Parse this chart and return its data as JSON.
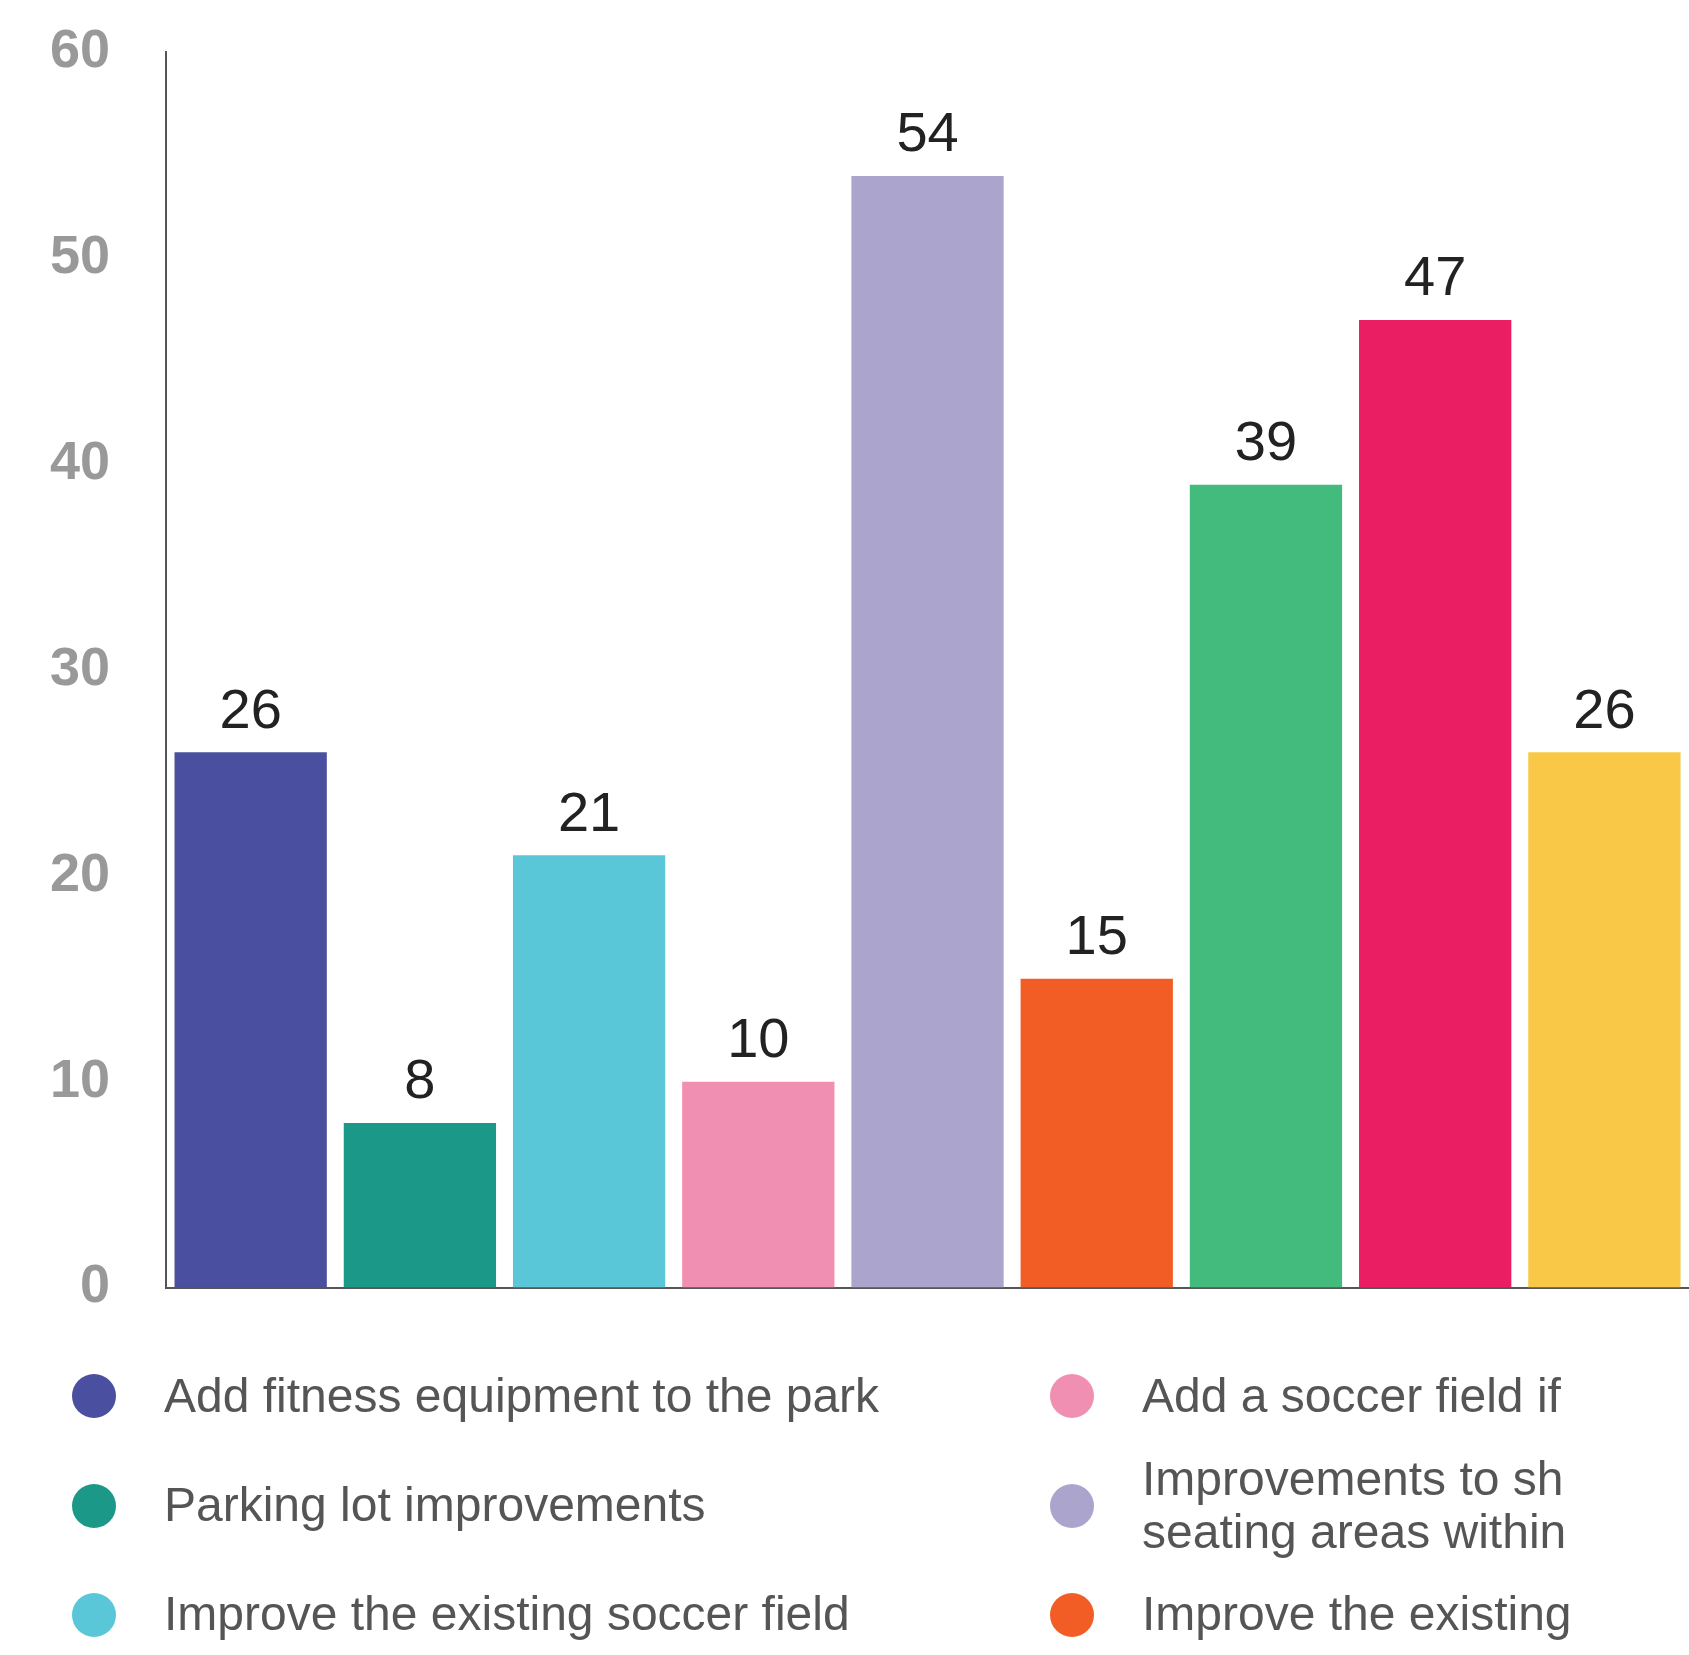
{
  "chart_data": {
    "type": "bar",
    "stacked": true,
    "categories": [
      null,
      null,
      null,
      null,
      null,
      null,
      null,
      null,
      null
    ],
    "series": [
      {
        "name": "Add fitness equipment to the park",
        "color": "#4a4f9f",
        "values": [
          26,
          null,
          null,
          null,
          null,
          null,
          null,
          null,
          null
        ]
      },
      {
        "name": "Parking lot improvements",
        "color": "#1b9888",
        "values": [
          null,
          8,
          null,
          null,
          null,
          null,
          null,
          null,
          null
        ]
      },
      {
        "name": "Improve the existing soccer field",
        "color": "#5ac7d9",
        "values": [
          null,
          null,
          21,
          null,
          null,
          null,
          null,
          null,
          null
        ]
      },
      {
        "name": "Add a soccer field if",
        "color": "#f18fb2",
        "values": [
          null,
          null,
          null,
          10,
          null,
          null,
          null,
          null,
          null
        ]
      },
      {
        "name": "Improvements to sh seating areas within",
        "color": "#aba4cc",
        "values": [
          null,
          null,
          null,
          null,
          54,
          null,
          null,
          null,
          null
        ]
      },
      {
        "name": "Improve the existing",
        "color": "#f15d25",
        "values": [
          null,
          null,
          null,
          null,
          null,
          15,
          null,
          null,
          null
        ]
      },
      {
        "color": "#42bb7c",
        "values": [
          null,
          null,
          null,
          null,
          null,
          null,
          39,
          null,
          null
        ]
      },
      {
        "color": "#e91e63",
        "values": [
          null,
          null,
          null,
          null,
          null,
          null,
          null,
          47,
          null
        ]
      },
      {
        "color": "#f9c846",
        "values": [
          null,
          null,
          null,
          null,
          null,
          null,
          null,
          null,
          26
        ]
      }
    ],
    "ylim": [
      0,
      60
    ],
    "yticks": [
      0,
      10,
      20,
      30,
      40,
      50,
      60
    ],
    "grid": false,
    "data_labels": true,
    "legend": "bottom",
    "tick_labels": "y"
  }
}
